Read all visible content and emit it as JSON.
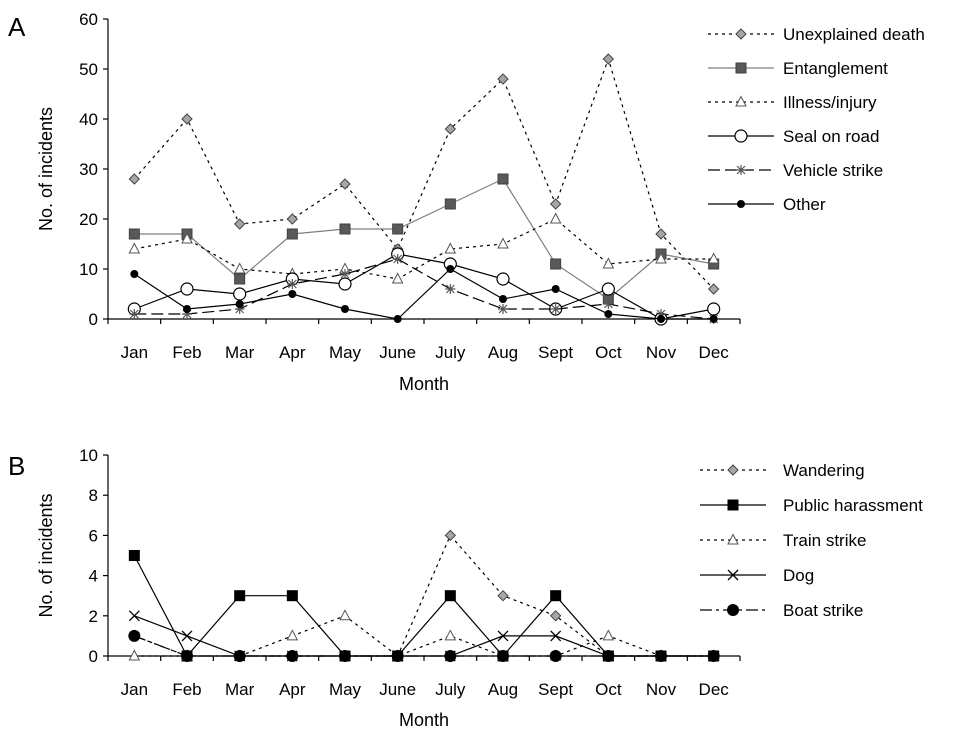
{
  "chart_data": [
    {
      "type": "line",
      "panel_label": "A",
      "title": "",
      "xlabel": "Month",
      "ylabel": "No. of incidents",
      "ylim": [
        0,
        60
      ],
      "yticks": [
        0,
        10,
        20,
        30,
        40,
        50,
        60
      ],
      "grid": false,
      "legend_position": "right",
      "categories": [
        "Jan",
        "Feb",
        "Mar",
        "Apr",
        "May",
        "June",
        "July",
        "Aug",
        "Sept",
        "Oct",
        "Nov",
        "Dec"
      ],
      "series": [
        {
          "name": "Unexplained death",
          "values": [
            28,
            40,
            19,
            20,
            27,
            14,
            38,
            48,
            23,
            52,
            17,
            6
          ],
          "line": "dotted",
          "marker": "diamond-gray",
          "color": "#000000"
        },
        {
          "name": "Entanglement",
          "values": [
            17,
            17,
            8,
            17,
            18,
            18,
            23,
            28,
            11,
            4,
            13,
            11
          ],
          "line": "solid-gray",
          "marker": "square-gray",
          "color": "#808080"
        },
        {
          "name": "Illness/injury",
          "values": [
            14,
            16,
            10,
            9,
            10,
            8,
            14,
            15,
            20,
            11,
            12,
            12
          ],
          "line": "dotted",
          "marker": "triangle-open",
          "color": "#000000"
        },
        {
          "name": "Seal on road",
          "values": [
            2,
            6,
            5,
            8,
            7,
            13,
            11,
            8,
            2,
            6,
            0,
            2
          ],
          "line": "solid",
          "marker": "circle-open",
          "color": "#000000"
        },
        {
          "name": "Vehicle strike",
          "values": [
            1,
            1,
            2,
            7,
            9,
            12,
            6,
            2,
            2,
            3,
            1,
            0
          ],
          "line": "dashed",
          "marker": "star",
          "color": "#000000"
        },
        {
          "name": "Other",
          "values": [
            9,
            2,
            3,
            5,
            2,
            0,
            10,
            4,
            6,
            1,
            0,
            0
          ],
          "line": "solid",
          "marker": "circle-filled",
          "color": "#000000"
        }
      ]
    },
    {
      "type": "line",
      "panel_label": "B",
      "title": "",
      "xlabel": "Month",
      "ylabel": "No. of incidents",
      "ylim": [
        0,
        10
      ],
      "yticks": [
        0,
        2,
        4,
        6,
        8,
        10
      ],
      "grid": false,
      "legend_position": "right",
      "categories": [
        "Jan",
        "Feb",
        "Mar",
        "Apr",
        "May",
        "June",
        "July",
        "Aug",
        "Sept",
        "Oct",
        "Nov",
        "Dec"
      ],
      "series": [
        {
          "name": "Wandering",
          "values": [
            1,
            0,
            0,
            0,
            0,
            0,
            6,
            3,
            2,
            0,
            0,
            0
          ],
          "line": "dotted",
          "marker": "diamond-gray",
          "color": "#000000"
        },
        {
          "name": "Public harassment",
          "values": [
            5,
            0,
            3,
            3,
            0,
            0,
            3,
            0,
            3,
            0,
            0,
            0
          ],
          "line": "solid",
          "marker": "square-filled",
          "color": "#000000"
        },
        {
          "name": "Train strike",
          "values": [
            0,
            0,
            0,
            1,
            2,
            0,
            1,
            0,
            0,
            1,
            0,
            0
          ],
          "line": "dotted",
          "marker": "triangle-open",
          "color": "#000000"
        },
        {
          "name": "Dog",
          "values": [
            2,
            1,
            0,
            0,
            0,
            0,
            0,
            1,
            1,
            0,
            0,
            0
          ],
          "line": "solid",
          "marker": "x",
          "color": "#000000"
        },
        {
          "name": "Boat strike",
          "values": [
            1,
            0,
            0,
            0,
            0,
            0,
            0,
            0,
            0,
            0,
            0,
            0
          ],
          "line": "dashdot",
          "marker": "circle-big-filled",
          "color": "#000000"
        }
      ]
    }
  ]
}
